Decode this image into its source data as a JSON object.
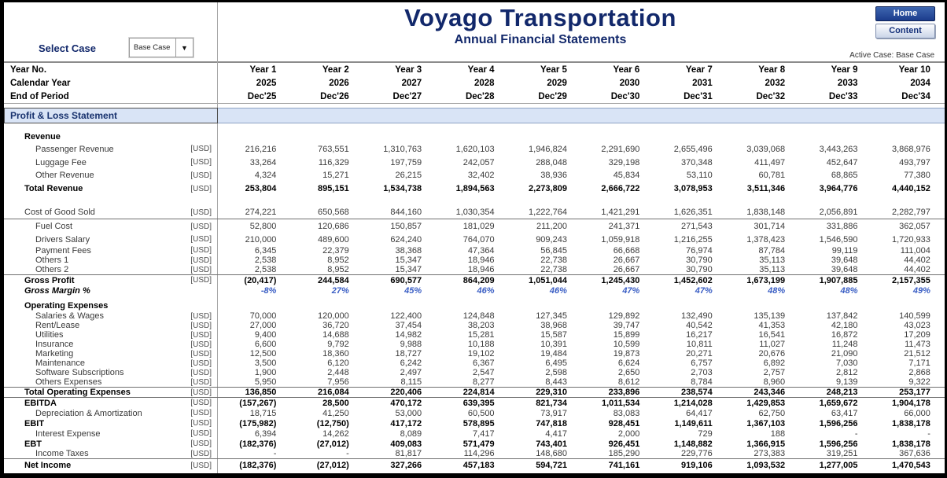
{
  "header": {
    "title": "Voyago Transportation",
    "subtitle": "Annual Financial Statements",
    "home_button": "Home",
    "content_button": "Content",
    "select_case_label": "Select Case",
    "select_case_value": "Base Case",
    "active_case": "Active Case: Base Case"
  },
  "colors": {
    "navy": "#12286b",
    "banner_bg": "#d9e4f6",
    "percent_blue": "#3a5ec4",
    "home_button_bg": "#1c3c8c"
  },
  "table": {
    "section_banner": "Profit & Loss Statement",
    "unit": "[USD]",
    "meta_rows": [
      {
        "label": "Year No.",
        "values": [
          "Year  1",
          "Year  2",
          "Year  3",
          "Year  4",
          "Year  5",
          "Year  6",
          "Year  7",
          "Year  8",
          "Year  9",
          "Year  10"
        ]
      },
      {
        "label": "Calendar Year",
        "values": [
          "2025",
          "2026",
          "2027",
          "2028",
          "2029",
          "2030",
          "2031",
          "2032",
          "2033",
          "2034"
        ]
      },
      {
        "label": "End of Period",
        "values": [
          "Dec'25",
          "Dec'26",
          "Dec'27",
          "Dec'28",
          "Dec'29",
          "Dec'30",
          "Dec'31",
          "Dec'32",
          "Dec'33",
          "Dec'34"
        ]
      }
    ],
    "rows": [
      {
        "style": "spacer-s"
      },
      {
        "style": "section",
        "label": "Revenue",
        "h": 15
      },
      {
        "style": "item",
        "label": "Passenger Revenue",
        "unit": true,
        "h": 17,
        "values": [
          "216,216",
          "763,551",
          "1,310,763",
          "1,620,103",
          "1,946,824",
          "2,291,690",
          "2,655,496",
          "3,039,068",
          "3,443,263",
          "3,868,976"
        ]
      },
      {
        "style": "item",
        "label": "Luggage Fee",
        "unit": true,
        "h": 17,
        "values": [
          "33,264",
          "116,329",
          "197,759",
          "242,057",
          "288,048",
          "329,198",
          "370,348",
          "411,497",
          "452,647",
          "493,797"
        ]
      },
      {
        "style": "item",
        "label": "Other Revenue",
        "unit": true,
        "h": 16,
        "values": [
          "4,324",
          "15,271",
          "26,215",
          "32,402",
          "38,936",
          "45,834",
          "53,110",
          "60,781",
          "68,865",
          "77,380"
        ]
      },
      {
        "style": "total",
        "label": "Total Revenue",
        "unit": true,
        "h": 18,
        "values": [
          "253,804",
          "895,151",
          "1,534,738",
          "1,894,563",
          "2,273,809",
          "2,666,722",
          "3,078,953",
          "3,511,346",
          "3,964,776",
          "4,440,152"
        ]
      },
      {
        "style": "spacer-m"
      },
      {
        "style": "flat b-bot",
        "label": "Cost of Good Sold",
        "unit": true,
        "h": 17,
        "values": [
          "274,221",
          "650,568",
          "844,160",
          "1,030,354",
          "1,222,764",
          "1,421,291",
          "1,626,351",
          "1,838,148",
          "2,056,891",
          "2,282,797"
        ]
      },
      {
        "style": "item",
        "label": "Fuel Cost",
        "unit": true,
        "h": 18,
        "values": [
          "52,800",
          "120,686",
          "150,857",
          "181,029",
          "211,200",
          "241,371",
          "271,543",
          "301,714",
          "331,886",
          "362,057"
        ]
      },
      {
        "style": "item",
        "label": "Drivers Salary",
        "unit": true,
        "h": 15,
        "values": [
          "210,000",
          "489,600",
          "624,240",
          "764,070",
          "909,243",
          "1,059,918",
          "1,216,255",
          "1,378,423",
          "1,546,590",
          "1,720,933"
        ]
      },
      {
        "style": "item",
        "label": "Payment Fees",
        "unit": true,
        "h": 13,
        "values": [
          "6,345",
          "22,379",
          "38,368",
          "47,364",
          "56,845",
          "66,668",
          "76,974",
          "87,784",
          "99,119",
          "111,004"
        ]
      },
      {
        "style": "item",
        "label": "Others 1",
        "unit": true,
        "h": 12,
        "values": [
          "2,538",
          "8,952",
          "15,347",
          "18,946",
          "22,738",
          "26,667",
          "30,790",
          "35,113",
          "39,648",
          "44,402"
        ]
      },
      {
        "style": "item",
        "label": "Others 2",
        "unit": true,
        "h": 12,
        "values": [
          "2,538",
          "8,952",
          "15,347",
          "18,946",
          "22,738",
          "26,667",
          "30,790",
          "35,113",
          "39,648",
          "44,402"
        ]
      },
      {
        "style": "total b-top",
        "label": "Gross Profit",
        "unit": true,
        "h": 14,
        "values": [
          "(20,417)",
          "244,584",
          "690,577",
          "864,209",
          "1,051,044",
          "1,245,430",
          "1,452,602",
          "1,673,199",
          "1,907,885",
          "2,157,355"
        ]
      },
      {
        "style": "percent",
        "label": "Gross Margin %",
        "unit": false,
        "h": 14,
        "values": [
          "-8%",
          "27%",
          "45%",
          "46%",
          "46%",
          "47%",
          "47%",
          "48%",
          "48%",
          "49%"
        ]
      },
      {
        "style": "spacer-xs"
      },
      {
        "style": "section",
        "label": "Operating Expenses",
        "h": 14
      },
      {
        "style": "item",
        "label": "Salaries & Wages",
        "unit": true,
        "h": 12,
        "values": [
          "70,000",
          "120,000",
          "122,400",
          "124,848",
          "127,345",
          "129,892",
          "132,490",
          "135,139",
          "137,842",
          "140,599"
        ]
      },
      {
        "style": "item",
        "label": "Rent/Lease",
        "unit": true,
        "h": 12,
        "values": [
          "27,000",
          "36,720",
          "37,454",
          "38,203",
          "38,968",
          "39,747",
          "40,542",
          "41,353",
          "42,180",
          "43,023"
        ]
      },
      {
        "style": "item",
        "label": "Utilities",
        "unit": true,
        "h": 12,
        "values": [
          "9,400",
          "14,688",
          "14,982",
          "15,281",
          "15,587",
          "15,899",
          "16,217",
          "16,541",
          "16,872",
          "17,209"
        ]
      },
      {
        "style": "item",
        "label": "Insurance",
        "unit": true,
        "h": 12,
        "values": [
          "6,600",
          "9,792",
          "9,988",
          "10,188",
          "10,391",
          "10,599",
          "10,811",
          "11,027",
          "11,248",
          "11,473"
        ]
      },
      {
        "style": "item",
        "label": "Marketing",
        "unit": true,
        "h": 12,
        "values": [
          "12,500",
          "18,360",
          "18,727",
          "19,102",
          "19,484",
          "19,873",
          "20,271",
          "20,676",
          "21,090",
          "21,512"
        ]
      },
      {
        "style": "item",
        "label": "Maintenance",
        "unit": true,
        "h": 12,
        "values": [
          "3,500",
          "6,120",
          "6,242",
          "6,367",
          "6,495",
          "6,624",
          "6,757",
          "6,892",
          "7,030",
          "7,171"
        ]
      },
      {
        "style": "item",
        "label": "Software Subscriptions",
        "unit": true,
        "h": 12,
        "values": [
          "1,900",
          "2,448",
          "2,497",
          "2,547",
          "2,598",
          "2,650",
          "2,703",
          "2,757",
          "2,812",
          "2,868"
        ]
      },
      {
        "style": "item",
        "label": "Others Expenses",
        "unit": true,
        "h": 12,
        "values": [
          "5,950",
          "7,956",
          "8,115",
          "8,277",
          "8,443",
          "8,612",
          "8,784",
          "8,960",
          "9,139",
          "9,322"
        ]
      },
      {
        "style": "total b-top b-bot",
        "label": "Total Operating Expenses",
        "unit": true,
        "h": 14,
        "values": [
          "136,850",
          "216,084",
          "220,406",
          "224,814",
          "229,310",
          "233,896",
          "238,574",
          "243,346",
          "248,213",
          "253,177"
        ]
      },
      {
        "style": "total",
        "label": "EBITDA",
        "unit": true,
        "h": 13,
        "values": [
          "(157,267)",
          "28,500",
          "470,172",
          "639,395",
          "821,734",
          "1,011,534",
          "1,214,028",
          "1,429,853",
          "1,659,672",
          "1,904,178"
        ]
      },
      {
        "style": "item",
        "label": "Depreciation & Amortization",
        "unit": true,
        "h": 13,
        "values": [
          "18,715",
          "41,250",
          "53,000",
          "60,500",
          "73,917",
          "83,083",
          "64,417",
          "62,750",
          "63,417",
          "66,000"
        ]
      },
      {
        "style": "total",
        "label": "EBIT",
        "unit": true,
        "h": 13,
        "values": [
          "(175,982)",
          "(12,750)",
          "417,172",
          "578,895",
          "747,818",
          "928,451",
          "1,149,611",
          "1,367,103",
          "1,596,256",
          "1,838,178"
        ]
      },
      {
        "style": "item",
        "label": "Interest Expense",
        "unit": true,
        "h": 13,
        "values": [
          "6,394",
          "14,262",
          "8,089",
          "7,417",
          "4,417",
          "2,000",
          "729",
          "188",
          "-",
          "-"
        ]
      },
      {
        "style": "total",
        "label": "EBT",
        "unit": true,
        "h": 13,
        "values": [
          "(182,376)",
          "(27,012)",
          "409,083",
          "571,479",
          "743,401",
          "926,451",
          "1,148,882",
          "1,366,915",
          "1,596,256",
          "1,838,178"
        ]
      },
      {
        "style": "item b-bot",
        "label": "Income Taxes",
        "unit": true,
        "h": 13,
        "values": [
          "-",
          "-",
          "81,817",
          "114,296",
          "148,680",
          "185,290",
          "229,776",
          "273,383",
          "319,251",
          "367,636"
        ]
      },
      {
        "style": "total",
        "label": "Net Income",
        "unit": true,
        "h": 16,
        "values": [
          "(182,376)",
          "(27,012)",
          "327,266",
          "457,183",
          "594,721",
          "741,161",
          "919,106",
          "1,093,532",
          "1,277,005",
          "1,470,543"
        ]
      }
    ]
  }
}
